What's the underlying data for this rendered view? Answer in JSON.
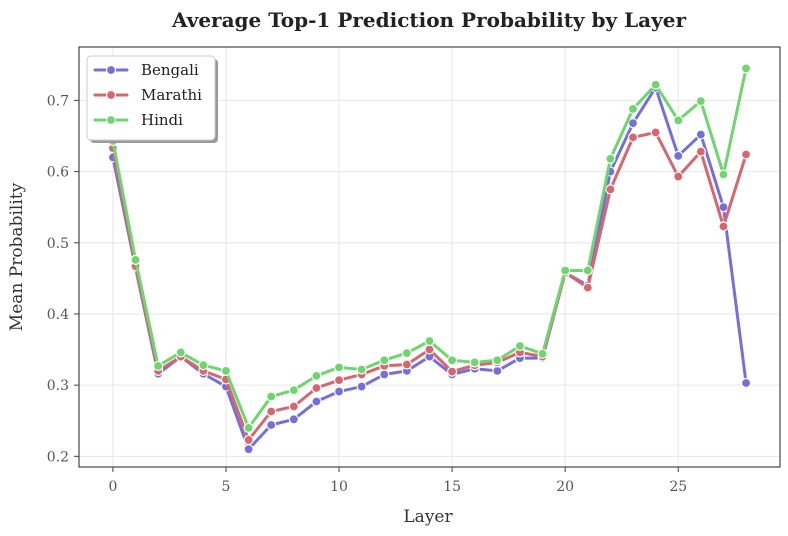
{
  "chart_data": {
    "type": "line",
    "title": "Average Top-1 Prediction Probability by Layer",
    "xlabel": "Layer",
    "ylabel": "Mean Probability",
    "xlim": [
      -1.5,
      29.5
    ],
    "ylim": [
      0.185,
      0.775
    ],
    "xticks": [
      0,
      5,
      10,
      15,
      20,
      25
    ],
    "yticks": [
      0.2,
      0.3,
      0.4,
      0.5,
      0.6,
      0.7
    ],
    "grid": true,
    "legend_position": "upper-left",
    "x": [
      0,
      1,
      2,
      3,
      4,
      5,
      6,
      7,
      8,
      9,
      10,
      11,
      12,
      13,
      14,
      15,
      16,
      17,
      18,
      19,
      20,
      21,
      22,
      23,
      24,
      25,
      26,
      27,
      28
    ],
    "series": [
      {
        "name": "Bengali",
        "color": "#7570d9",
        "values": [
          0.62,
          0.465,
          0.316,
          0.34,
          0.316,
          0.298,
          0.21,
          0.244,
          0.252,
          0.277,
          0.291,
          0.298,
          0.315,
          0.32,
          0.34,
          0.315,
          0.323,
          0.32,
          0.338,
          0.338,
          0.458,
          0.44,
          0.6,
          0.668,
          0.718,
          0.622,
          0.652,
          0.55,
          0.303
        ]
      },
      {
        "name": "Marathi",
        "color": "#d6676f",
        "values": [
          0.633,
          0.467,
          0.32,
          0.34,
          0.32,
          0.308,
          0.223,
          0.263,
          0.27,
          0.296,
          0.307,
          0.315,
          0.327,
          0.329,
          0.35,
          0.319,
          0.328,
          0.332,
          0.346,
          0.34,
          0.458,
          0.437,
          0.575,
          0.648,
          0.655,
          0.593,
          0.628,
          0.523,
          0.624
        ]
      },
      {
        "name": "Hindi",
        "color": "#6fd56f",
        "values": [
          0.643,
          0.476,
          0.327,
          0.346,
          0.328,
          0.32,
          0.24,
          0.284,
          0.293,
          0.313,
          0.325,
          0.322,
          0.335,
          0.345,
          0.362,
          0.335,
          0.332,
          0.335,
          0.355,
          0.344,
          0.461,
          0.461,
          0.618,
          0.688,
          0.722,
          0.672,
          0.699,
          0.596,
          0.745
        ]
      }
    ]
  }
}
